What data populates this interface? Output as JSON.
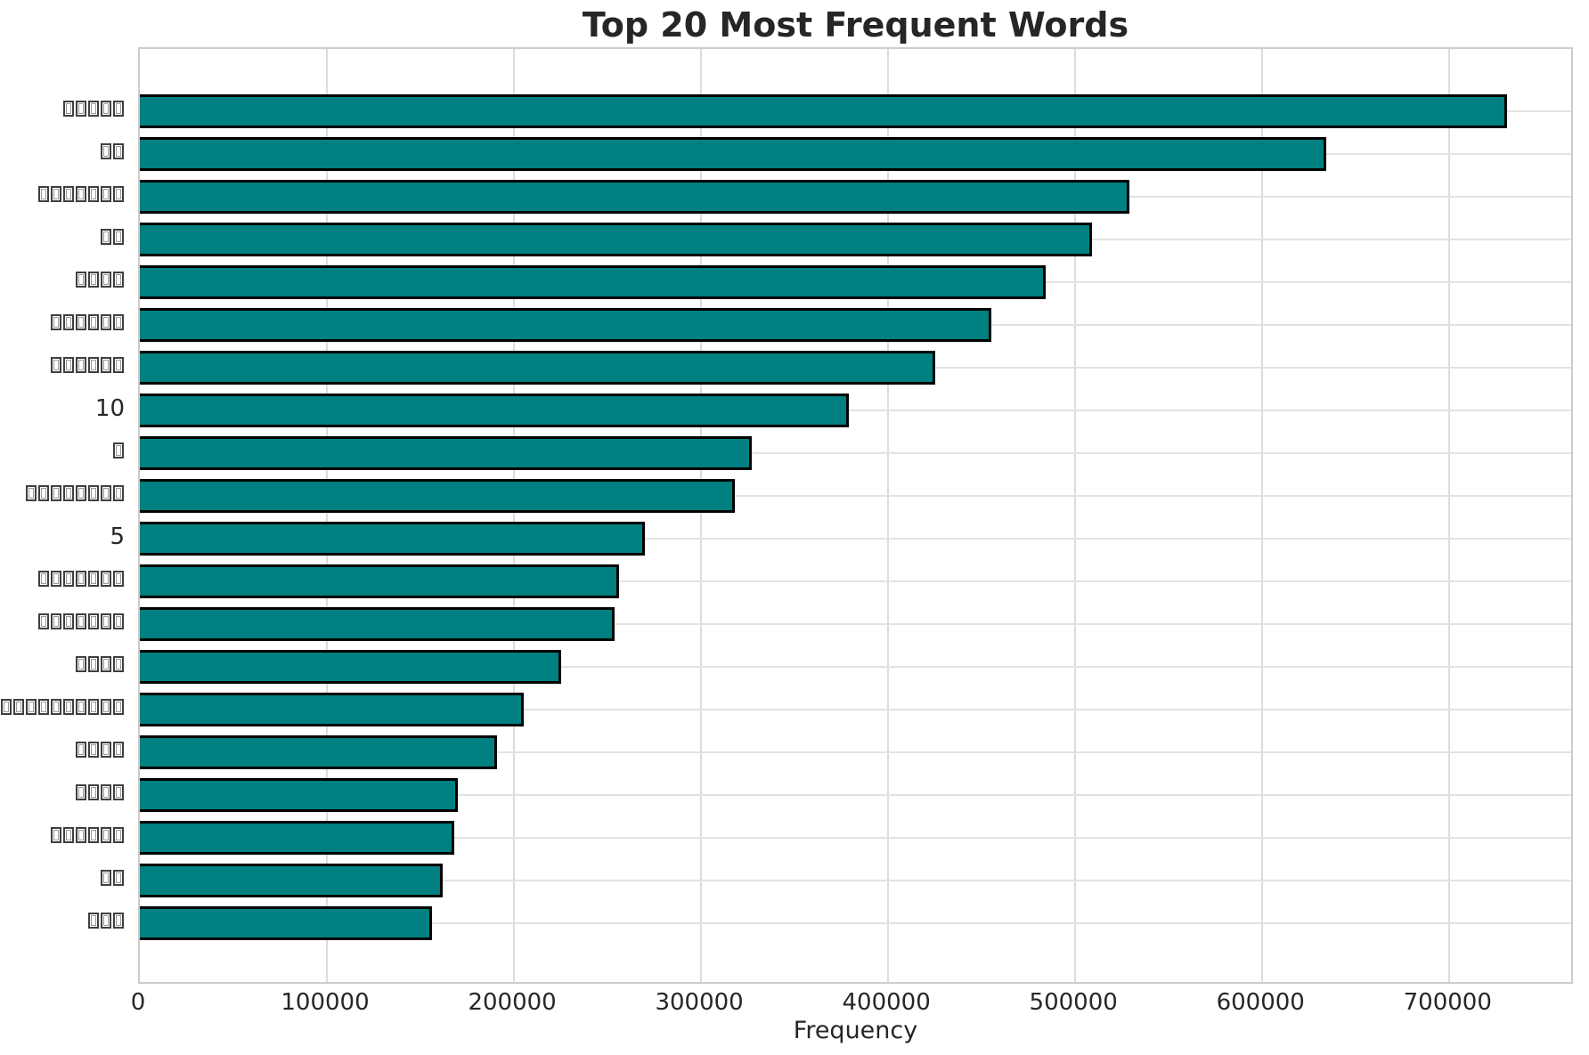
{
  "chart_data": {
    "type": "bar",
    "orientation": "horizontal",
    "title": "Top 20 Most Frequent Words",
    "xlabel": "Frequency",
    "ylabel": "",
    "categories": [
      "□□□□□",
      "□□",
      "□□□□□□□",
      "□□",
      "□□□□",
      "□□□□□□",
      "□□□□□□",
      "10",
      "□",
      "□□□□□□□□",
      "5",
      "□□□□□□□",
      "□□□□□□□",
      "□□□□",
      "□□□□□□□□□□",
      "□□□□",
      "□□□□",
      "□□□□□□",
      "□□",
      "□□□"
    ],
    "values": [
      731000,
      634000,
      529000,
      509000,
      484000,
      455000,
      425000,
      379000,
      327000,
      318000,
      270000,
      256000,
      254000,
      225000,
      205000,
      191000,
      170000,
      168000,
      162000,
      156000
    ],
    "xlim": [
      0,
      767000
    ],
    "xticks": [
      0,
      100000,
      200000,
      300000,
      400000,
      500000,
      600000,
      700000
    ],
    "grid": true,
    "legend": false,
    "bar_color": "#008080",
    "bar_edge_color": "#000000",
    "y_label_note": "labels shown as missing-glyph boxes except numeric words 10 and 5"
  }
}
